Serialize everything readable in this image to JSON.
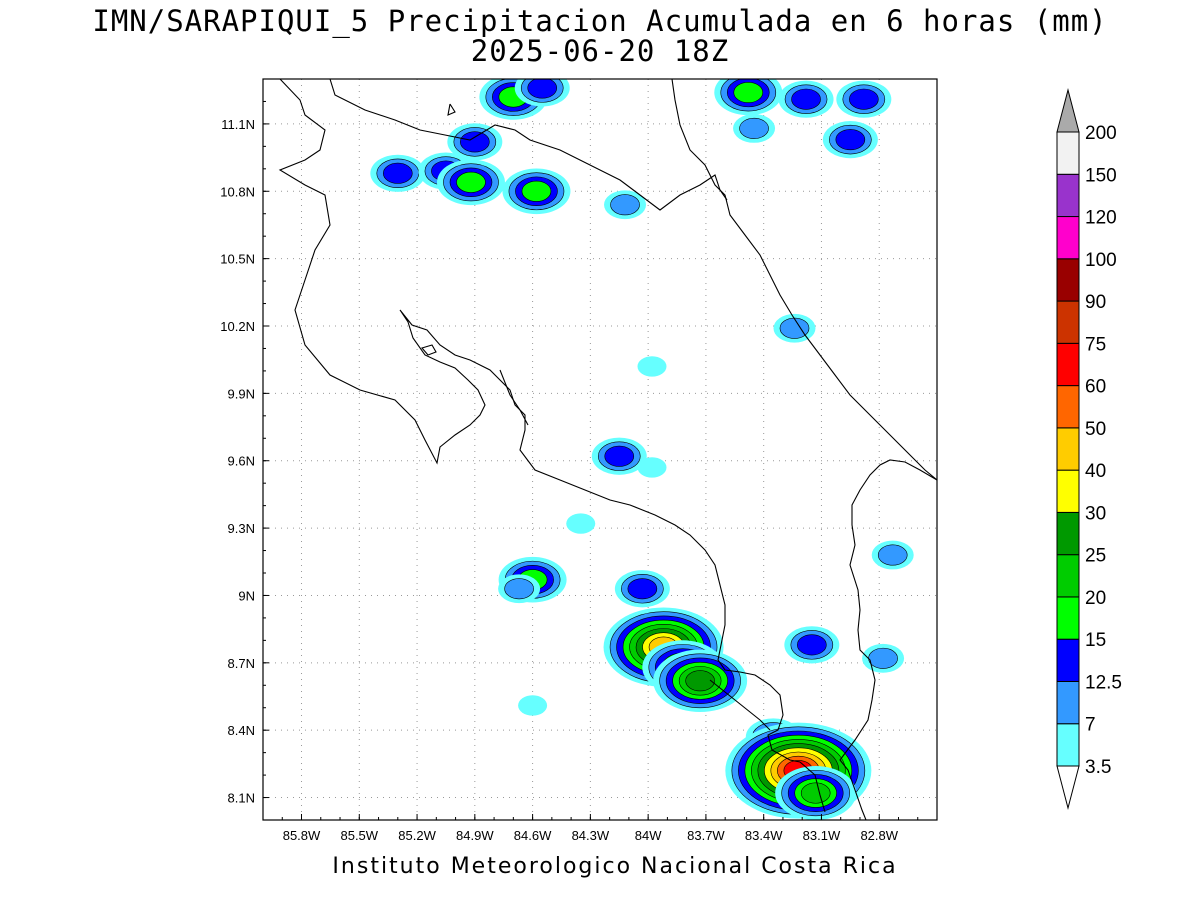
{
  "title_line1": "IMN/SARAPIQUI_5 Precipitacion Acumulada en 6 horas (mm)",
  "title_line2": "2025-06-20 18Z",
  "footer": "Instituto Meteorologico Nacional Costa Rica",
  "map": {
    "lon_range": [
      -86.0,
      -82.5
    ],
    "lat_range": [
      8.0,
      11.3
    ],
    "lon_ticks": [
      {
        "v": -85.8,
        "label": "85.8W"
      },
      {
        "v": -85.5,
        "label": "85.5W"
      },
      {
        "v": -85.2,
        "label": "85.2W"
      },
      {
        "v": -84.9,
        "label": "84.9W"
      },
      {
        "v": -84.6,
        "label": "84.6W"
      },
      {
        "v": -84.3,
        "label": "84.3W"
      },
      {
        "v": -84.0,
        "label": "84W"
      },
      {
        "v": -83.7,
        "label": "83.7W"
      },
      {
        "v": -83.4,
        "label": "83.4W"
      },
      {
        "v": -83.1,
        "label": "83.1W"
      },
      {
        "v": -82.8,
        "label": "82.8W"
      }
    ],
    "lat_ticks": [
      {
        "v": 8.1,
        "label": "8.1N"
      },
      {
        "v": 8.4,
        "label": "8.4N"
      },
      {
        "v": 8.7,
        "label": "8.7N"
      },
      {
        "v": 9.0,
        "label": "9N"
      },
      {
        "v": 9.3,
        "label": "9.3N"
      },
      {
        "v": 9.6,
        "label": "9.6N"
      },
      {
        "v": 9.9,
        "label": "9.9N"
      },
      {
        "v": 10.2,
        "label": "10.2N"
      },
      {
        "v": 10.5,
        "label": "10.5N"
      },
      {
        "v": 10.8,
        "label": "10.8N"
      },
      {
        "v": 11.1,
        "label": "11.1N"
      }
    ],
    "grid": "dotted",
    "precip_cells": [
      {
        "lon": -85.3,
        "lat": 10.88,
        "level": 3
      },
      {
        "lon": -85.05,
        "lat": 10.89,
        "level": 3
      },
      {
        "lon": -84.92,
        "lat": 10.84,
        "level": 4
      },
      {
        "lon": -84.9,
        "lat": 11.02,
        "level": 3
      },
      {
        "lon": -84.58,
        "lat": 10.8,
        "level": 4
      },
      {
        "lon": -84.7,
        "lat": 11.22,
        "level": 4
      },
      {
        "lon": -84.55,
        "lat": 11.26,
        "level": 3
      },
      {
        "lon": -84.12,
        "lat": 10.74,
        "level": 2
      },
      {
        "lon": -83.48,
        "lat": 11.24,
        "level": 4
      },
      {
        "lon": -83.18,
        "lat": 11.21,
        "level": 3
      },
      {
        "lon": -82.88,
        "lat": 11.21,
        "level": 3
      },
      {
        "lon": -83.45,
        "lat": 11.08,
        "level": 2
      },
      {
        "lon": -82.95,
        "lat": 11.03,
        "level": 3
      },
      {
        "lon": -83.24,
        "lat": 10.19,
        "level": 2
      },
      {
        "lon": -83.98,
        "lat": 10.02,
        "level": 1
      },
      {
        "lon": -84.15,
        "lat": 9.62,
        "level": 3
      },
      {
        "lon": -83.98,
        "lat": 9.57,
        "level": 1
      },
      {
        "lon": -84.6,
        "lat": 9.07,
        "level": 4
      },
      {
        "lon": -84.67,
        "lat": 9.03,
        "level": 2
      },
      {
        "lon": -84.03,
        "lat": 9.03,
        "level": 3
      },
      {
        "lon": -83.92,
        "lat": 8.77,
        "level": 8
      },
      {
        "lon": -83.82,
        "lat": 8.68,
        "level": 5
      },
      {
        "lon": -83.73,
        "lat": 8.62,
        "level": 6
      },
      {
        "lon": -83.35,
        "lat": 8.37,
        "level": 3
      },
      {
        "lon": -83.15,
        "lat": 8.78,
        "level": 3
      },
      {
        "lon": -82.78,
        "lat": 8.72,
        "level": 2
      },
      {
        "lon": -83.22,
        "lat": 8.22,
        "level": 10
      },
      {
        "lon": -83.13,
        "lat": 8.12,
        "level": 5
      },
      {
        "lon": -82.73,
        "lat": 9.18,
        "level": 2
      },
      {
        "lon": -84.6,
        "lat": 8.51,
        "level": 1
      },
      {
        "lon": -84.35,
        "lat": 9.32,
        "level": 1
      }
    ]
  },
  "legend": {
    "levels": [
      "3.5",
      "7",
      "12.5",
      "15",
      "20",
      "25",
      "30",
      "40",
      "50",
      "60",
      "75",
      "90",
      "100",
      "120",
      "150",
      "200"
    ],
    "colors": [
      "#66ffff",
      "#3399ff",
      "#0000ff",
      "#00ff00",
      "#00cc00",
      "#009900",
      "#ffff00",
      "#ffcc00",
      "#ff6600",
      "#ff0000",
      "#cc3300",
      "#990000",
      "#ff00cc",
      "#9933cc",
      "#f2f2f2"
    ],
    "over_color": "#aaaaaa",
    "under_color": "#ffffff"
  }
}
